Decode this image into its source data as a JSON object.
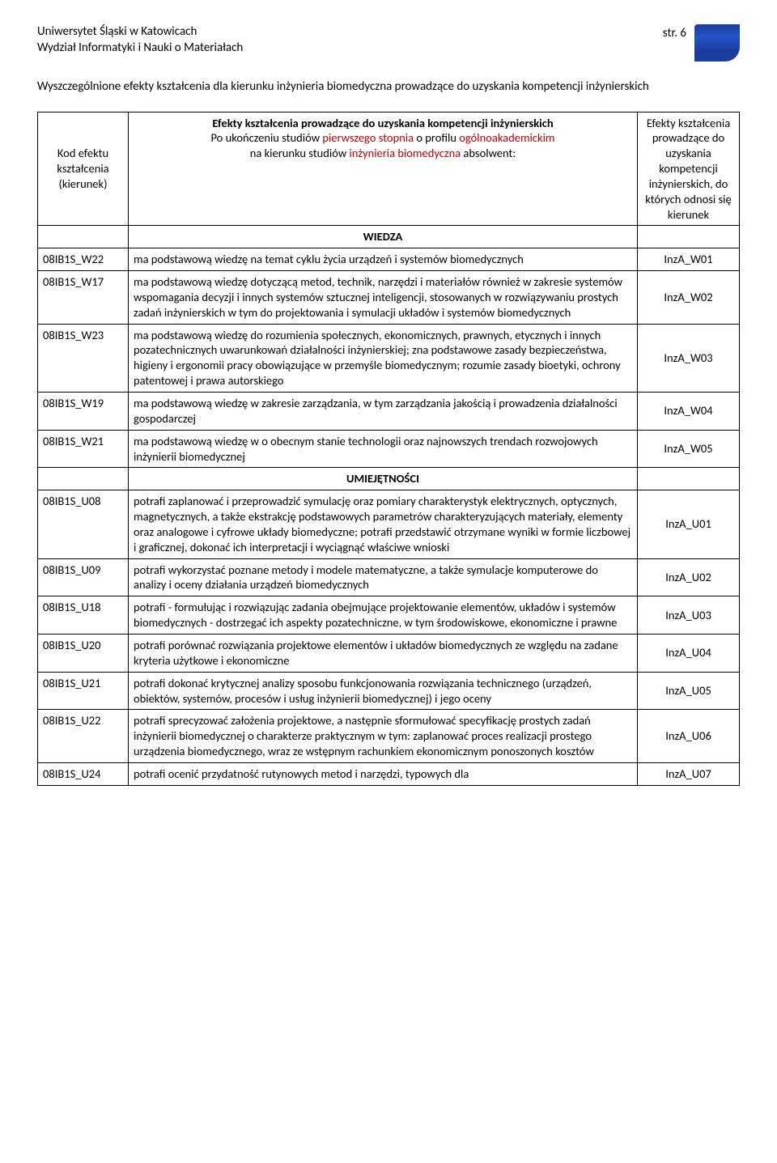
{
  "header": {
    "university": "Uniwersytet Śląski w Katowicach",
    "faculty": "Wydział Informatyki i Nauki o Materiałach",
    "page_label": "str. 6"
  },
  "title": "Wyszczególnione efekty kształcenia dla kierunku inżynieria biomedyczna prowadzące do uzyskania kompetencji inżynierskich",
  "tableHeader": {
    "codeLabel": "Kod efektu kształcenia (kierunek)",
    "desc_bold": "Efekty kształcenia prowadzące do uzyskania kompetencji inżynierskich",
    "desc_line2_a": "Po ukończeniu studiów ",
    "desc_line2_red1": "pierwszego stopnia",
    "desc_line2_b": " o profilu ",
    "desc_line2_red2": "ogólnoakademickim",
    "desc_line3_a": "na kierunku studiów ",
    "desc_line3_red": "inżynieria biomedyczna",
    "desc_line3_b": " absolwent:",
    "refLabel": "Efekty kształcenia prowadzące do uzyskania kompetencji inżynierskich, do których odnosi się kierunek"
  },
  "sections": {
    "wiedza": "WIEDZA",
    "umiejetnosci": "UMIEJĘTNOŚCI"
  },
  "rows": [
    {
      "code": "08IB1S_W22",
      "desc": "ma podstawową wiedzę na temat cyklu życia urządzeń i systemów biomedycznych",
      "ref": "InzA_W01"
    },
    {
      "code": "08IB1S_W17",
      "desc": "ma podstawową wiedzę dotyczącą metod, technik, narzędzi i materiałów również w zakresie systemów wspomagania decyzji i innych systemów sztucznej inteligencji, stosowanych w rozwiązywaniu prostych zadań inżynierskich w tym do projektowania i symulacji układów i systemów biomedycznych",
      "ref": "InzA_W02"
    },
    {
      "code": "08IB1S_W23",
      "desc": "ma podstawową wiedzę do rozumienia społecznych, ekonomicznych, prawnych, etycznych i innych pozatechnicznych uwarunkowań działalności inżynierskiej; zna podstawowe zasady bezpieczeństwa, higieny i ergonomii pracy obowiązujące w przemyśle biomedycznym; rozumie zasady bioetyki, ochrony patentowej i prawa autorskiego",
      "ref": "InzA_W03"
    },
    {
      "code": "08IB1S_W19",
      "desc": "ma podstawową wiedzę w zakresie zarządzania, w tym zarządzania jakością i prowadzenia działalności gospodarczej",
      "ref": "InzA_W04"
    },
    {
      "code": "08IB1S_W21",
      "desc": "ma podstawową wiedzę w o obecnym stanie technologii oraz najnowszych trendach rozwojowych inżynierii biomedycznej",
      "ref": "InzA_W05"
    },
    {
      "code": "08IB1S_U08",
      "desc": "potrafi zaplanować i przeprowadzić symulację oraz pomiary charakterystyk elektrycznych, optycznych, magnetycznych, a także ekstrakcję podstawowych parametrów charakteryzujących materiały, elementy oraz analogowe i cyfrowe układy biomedyczne; potrafi przedstawić otrzymane wyniki w formie liczbowej i graficznej, dokonać ich interpretacji i wyciągnąć właściwe wnioski",
      "ref": "InzA_U01"
    },
    {
      "code": "08IB1S_U09",
      "desc": "potrafi wykorzystać poznane metody i modele matematyczne, a także symulacje komputerowe do analizy i oceny działania urządzeń biomedycznych",
      "ref": "InzA_U02"
    },
    {
      "code": "08IB1S_U18",
      "desc": "potrafi - formułując i rozwiązując zadania obejmujące projektowanie elementów, układów i systemów biomedycznych - dostrzegać ich aspekty pozatechniczne, w tym środowiskowe, ekonomiczne i prawne",
      "ref": "InzA_U03"
    },
    {
      "code": "08IB1S_U20",
      "desc": "potrafi porównać rozwiązania projektowe elementów i układów biomedycznych ze względu na zadane kryteria użytkowe i ekonomiczne",
      "ref": "InzA_U04"
    },
    {
      "code": "08IB1S_U21",
      "desc": "potrafi dokonać krytycznej analizy sposobu funkcjonowania rozwiązania technicznego (urządzeń, obiektów, systemów, procesów i usług inżynierii biomedycznej) i jego oceny",
      "ref": "InzA_U05"
    },
    {
      "code": "08IB1S_U22",
      "desc": "potrafi sprecyzować założenia projektowe, a następnie sformułować specyfikację prostych zadań inżynierii biomedycznej o charakterze praktycznym w tym: zaplanować proces realizacji prostego urządzenia biomedycznego, wraz ze wstępnym rachunkiem ekonomicznym ponoszonych kosztów",
      "ref": "InzA_U06"
    },
    {
      "code": "08IB1S_U24",
      "desc": "potrafi ocenić przydatność rutynowych metod i narzędzi, typowych dla",
      "ref": "InzA_U07"
    }
  ]
}
